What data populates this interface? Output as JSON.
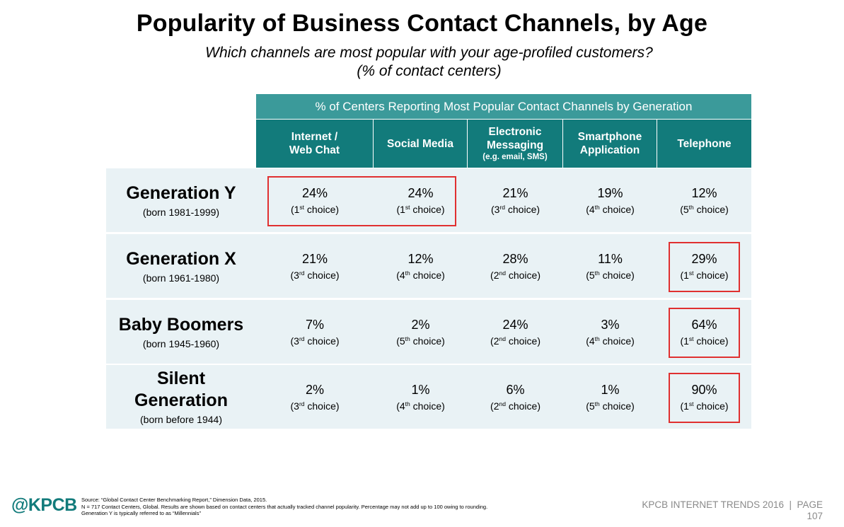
{
  "title": "Popularity of Business Contact Channels, by Age",
  "subtitle_line1": "Which channels are most popular with your age-profiled customers?",
  "subtitle_line2": "(% of contact centers)",
  "colors": {
    "header_dark": "#127b7b",
    "header_light": "#3b9a9a",
    "row_bg": "#e9f2f5",
    "highlight": "#e03030",
    "brand": "#127b7b"
  },
  "chart_data": {
    "type": "table",
    "banner": "% of Centers Reporting Most Popular Contact Channels by Generation",
    "columns": [
      {
        "label": "Internet / Web Chat",
        "line1": "Internet /",
        "line2": "Web Chat",
        "sub": ""
      },
      {
        "label": "Social Media",
        "line1": "Social Media",
        "line2": "",
        "sub": ""
      },
      {
        "label": "Electronic Messaging (e.g. email, SMS)",
        "line1": "Electronic",
        "line2": "Messaging",
        "sub": "(e.g. email, SMS)"
      },
      {
        "label": "Smartphone Application",
        "line1": "Smartphone",
        "line2": "Application",
        "sub": ""
      },
      {
        "label": "Telephone",
        "line1": "Telephone",
        "line2": "",
        "sub": ""
      }
    ],
    "rows": [
      {
        "generation": "Generation Y",
        "born": "(born 1981-1999)",
        "cells": [
          {
            "pct": "24%",
            "rank": "1",
            "suffix": "st",
            "choice": " choice"
          },
          {
            "pct": "24%",
            "rank": "1",
            "suffix": "st",
            "choice": " choice"
          },
          {
            "pct": "21%",
            "rank": "3",
            "suffix": "rd",
            "choice": " choice"
          },
          {
            "pct": "19%",
            "rank": "4",
            "suffix": "th",
            "choice": " choice"
          },
          {
            "pct": "12%",
            "rank": "5",
            "suffix": "th",
            "choice": " choice"
          }
        ],
        "highlighted_columns": [
          0,
          1
        ]
      },
      {
        "generation": "Generation X",
        "born": "(born 1961-1980)",
        "cells": [
          {
            "pct": "21%",
            "rank": "3",
            "suffix": "rd",
            "choice": " choice"
          },
          {
            "pct": "12%",
            "rank": "4",
            "suffix": "th",
            "choice": " choice"
          },
          {
            "pct": "28%",
            "rank": "2",
            "suffix": "nd",
            "choice": " choice"
          },
          {
            "pct": "11%",
            "rank": "5",
            "suffix": "th",
            "choice": " choice"
          },
          {
            "pct": "29%",
            "rank": "1",
            "suffix": "st",
            "choice": " choice"
          }
        ],
        "highlighted_columns": [
          4
        ]
      },
      {
        "generation": "Baby Boomers",
        "born": "(born 1945-1960)",
        "cells": [
          {
            "pct": "7%",
            "rank": "3",
            "suffix": "rd",
            "choice": " choice"
          },
          {
            "pct": "2%",
            "rank": "5",
            "suffix": "th",
            "choice": " choice"
          },
          {
            "pct": "24%",
            "rank": "2",
            "suffix": "nd",
            "choice": " choice"
          },
          {
            "pct": "3%",
            "rank": "4",
            "suffix": "th",
            "choice": " choice"
          },
          {
            "pct": "64%",
            "rank": "1",
            "suffix": "st",
            "choice": " choice"
          }
        ],
        "highlighted_columns": [
          4
        ]
      },
      {
        "generation": "Silent Generation",
        "gen_line1": "Silent",
        "gen_line2": "Generation",
        "born": "(born before 1944)",
        "cells": [
          {
            "pct": "2%",
            "rank": "3",
            "suffix": "rd",
            "choice": " choice"
          },
          {
            "pct": "1%",
            "rank": "4",
            "suffix": "th",
            "choice": " choice"
          },
          {
            "pct": "6%",
            "rank": "2",
            "suffix": "nd",
            "choice": " choice"
          },
          {
            "pct": "1%",
            "rank": "5",
            "suffix": "th",
            "choice": " choice"
          },
          {
            "pct": "90%",
            "rank": "1",
            "suffix": "st",
            "choice": " choice"
          }
        ],
        "highlighted_columns": [
          4
        ]
      }
    ]
  },
  "footer": {
    "logo": "@KPCB",
    "source_line1": "Source: “Global Contact Center Benchmarking Report,” Dimension Data, 2015.",
    "source_line2": "N = 717 Contact Centers, Global. Results are shown based on contact centers that actually tracked channel popularity. Percentage may not add up to 100 owing to rounding.",
    "source_line3": "Generation Y is typically referred to as “Millennials”",
    "report_line1": "KPCB INTERNET TRENDS 2016  |  PAGE",
    "report_line2": "107"
  }
}
